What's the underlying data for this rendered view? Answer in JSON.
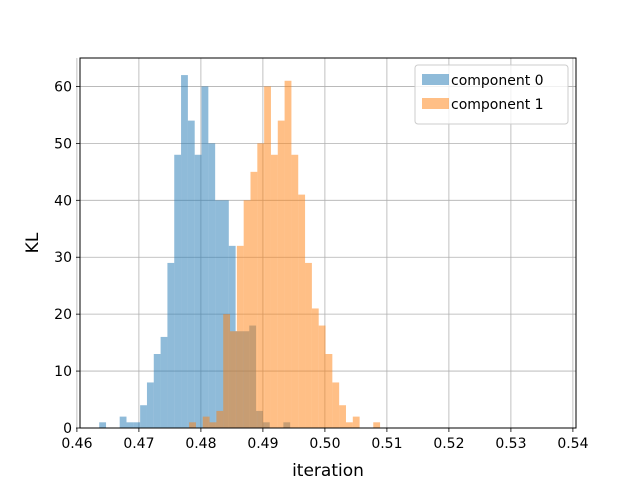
{
  "chart_data": {
    "type": "bar",
    "subtype": "overlapping-histogram",
    "title": "",
    "xlabel": "iteration",
    "ylabel": "KL",
    "xlim": [
      0.4605,
      0.5405
    ],
    "ylim": [
      0,
      65
    ],
    "xticks": [
      0.46,
      0.47,
      0.48,
      0.49,
      0.5,
      0.51,
      0.52,
      0.53,
      0.54
    ],
    "xtick_labels": [
      "0.46",
      "0.47",
      "0.48",
      "0.49",
      "0.50",
      "0.51",
      "0.52",
      "0.53",
      "0.54"
    ],
    "yticks": [
      0,
      10,
      20,
      30,
      40,
      50,
      60
    ],
    "ytick_labels": [
      "0",
      "10",
      "20",
      "30",
      "40",
      "50",
      "60"
    ],
    "grid": true,
    "legend_position": "top-right",
    "bin_width": 0.0011,
    "series": [
      {
        "name": "component 0",
        "color": "#1f77b4",
        "opacity": 0.5,
        "bins": [
          {
            "x0": 0.4636,
            "count": 1
          },
          {
            "x0": 0.4647,
            "count": 0
          },
          {
            "x0": 0.4658,
            "count": 0
          },
          {
            "x0": 0.4669,
            "count": 2
          },
          {
            "x0": 0.468,
            "count": 1
          },
          {
            "x0": 0.4691,
            "count": 1
          },
          {
            "x0": 0.4702,
            "count": 4
          },
          {
            "x0": 0.4713,
            "count": 8
          },
          {
            "x0": 0.4724,
            "count": 13
          },
          {
            "x0": 0.4735,
            "count": 16
          },
          {
            "x0": 0.4746,
            "count": 29
          },
          {
            "x0": 0.4757,
            "count": 48
          },
          {
            "x0": 0.4768,
            "count": 62
          },
          {
            "x0": 0.4779,
            "count": 54
          },
          {
            "x0": 0.479,
            "count": 48
          },
          {
            "x0": 0.4801,
            "count": 60
          },
          {
            "x0": 0.4812,
            "count": 50
          },
          {
            "x0": 0.4823,
            "count": 40
          },
          {
            "x0": 0.4834,
            "count": 40
          },
          {
            "x0": 0.4845,
            "count": 32
          },
          {
            "x0": 0.4856,
            "count": 17
          },
          {
            "x0": 0.4867,
            "count": 17
          },
          {
            "x0": 0.4878,
            "count": 18
          },
          {
            "x0": 0.4889,
            "count": 3
          },
          {
            "x0": 0.49,
            "count": 1
          },
          {
            "x0": 0.4911,
            "count": 0
          },
          {
            "x0": 0.4922,
            "count": 0
          },
          {
            "x0": 0.4933,
            "count": 1
          }
        ]
      },
      {
        "name": "component 1",
        "color": "#ff7f0e",
        "opacity": 0.5,
        "bins": [
          {
            "x0": 0.4781,
            "count": 1
          },
          {
            "x0": 0.4792,
            "count": 0
          },
          {
            "x0": 0.4803,
            "count": 2
          },
          {
            "x0": 0.4814,
            "count": 1
          },
          {
            "x0": 0.4825,
            "count": 3
          },
          {
            "x0": 0.4836,
            "count": 20
          },
          {
            "x0": 0.4847,
            "count": 17
          },
          {
            "x0": 0.4858,
            "count": 32
          },
          {
            "x0": 0.4869,
            "count": 40
          },
          {
            "x0": 0.488,
            "count": 45
          },
          {
            "x0": 0.4891,
            "count": 50
          },
          {
            "x0": 0.4902,
            "count": 60
          },
          {
            "x0": 0.4913,
            "count": 48
          },
          {
            "x0": 0.4924,
            "count": 54
          },
          {
            "x0": 0.4935,
            "count": 61
          },
          {
            "x0": 0.4946,
            "count": 48
          },
          {
            "x0": 0.4957,
            "count": 41
          },
          {
            "x0": 0.4968,
            "count": 29
          },
          {
            "x0": 0.4979,
            "count": 21
          },
          {
            "x0": 0.499,
            "count": 18
          },
          {
            "x0": 0.5001,
            "count": 13
          },
          {
            "x0": 0.5012,
            "count": 8
          },
          {
            "x0": 0.5023,
            "count": 4
          },
          {
            "x0": 0.5034,
            "count": 1
          },
          {
            "x0": 0.5045,
            "count": 2
          },
          {
            "x0": 0.5056,
            "count": 0
          },
          {
            "x0": 0.5067,
            "count": 0
          },
          {
            "x0": 0.5078,
            "count": 1
          }
        ]
      }
    ]
  }
}
